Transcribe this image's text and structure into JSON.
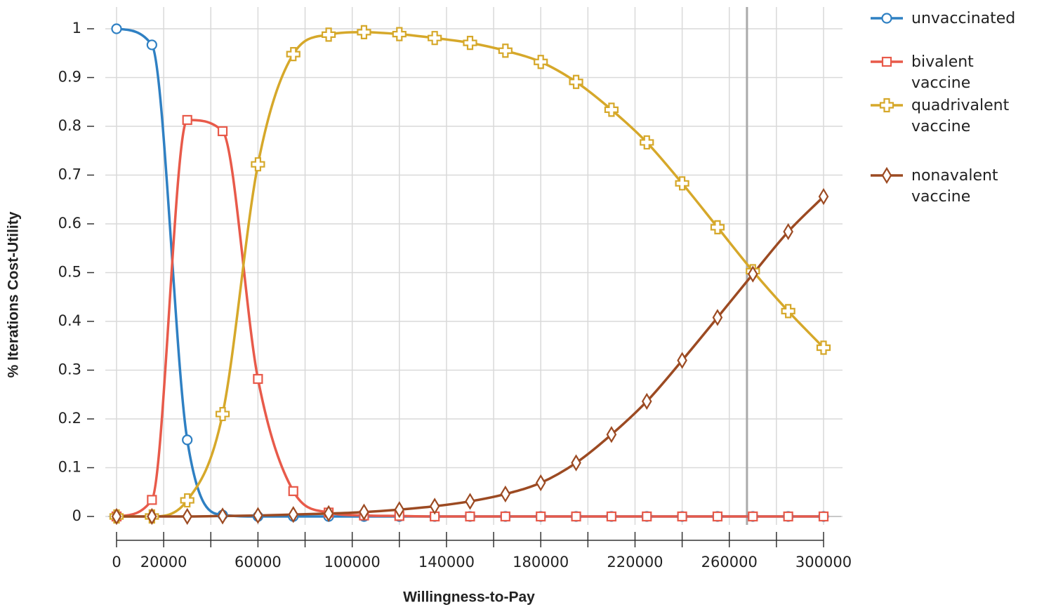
{
  "chart_data": {
    "type": "line",
    "x_label": "Willingness-to-Pay",
    "y_label": "% Iterations Cost-Utility",
    "x": [
      0,
      15000,
      30000,
      45000,
      60000,
      75000,
      90000,
      105000,
      120000,
      135000,
      150000,
      165000,
      180000,
      195000,
      210000,
      225000,
      240000,
      255000,
      270000,
      285000,
      300000
    ],
    "series": [
      {
        "name": "unvaccinated",
        "color": "#2f80c3",
        "marker": "circle",
        "values": [
          1,
          0.967,
          0.157,
          0.003,
          0,
          0,
          0,
          0,
          0,
          0,
          0,
          0,
          0,
          0,
          0,
          0,
          0,
          0,
          0,
          0,
          0
        ]
      },
      {
        "name": "bivalent vaccine",
        "color": "#e85a4a",
        "marker": "square",
        "values": [
          0,
          0.034,
          0.813,
          0.79,
          0.282,
          0.052,
          0.008,
          0.002,
          0.001,
          0,
          0,
          0,
          0,
          0,
          0,
          0,
          0,
          0,
          0,
          0,
          0
        ]
      },
      {
        "name": "quadrivalent vaccine",
        "color": "#d6a82a",
        "marker": "plus",
        "values": [
          0,
          0,
          0.033,
          0.21,
          0.722,
          0.948,
          0.988,
          0.993,
          0.989,
          0.981,
          0.971,
          0.955,
          0.932,
          0.891,
          0.834,
          0.767,
          0.683,
          0.593,
          0.503,
          0.421,
          0.346
        ]
      },
      {
        "name": "nonavalent vaccine",
        "color": "#9c4a22",
        "marker": "diamond",
        "values": [
          0,
          0,
          0,
          0.001,
          0.002,
          0.004,
          0.006,
          0.009,
          0.014,
          0.021,
          0.031,
          0.046,
          0.069,
          0.11,
          0.168,
          0.236,
          0.32,
          0.408,
          0.497,
          0.584,
          0.656
        ]
      }
    ],
    "xlim": [
      0,
      300000
    ],
    "xticks": [
      0,
      20000,
      60000,
      100000,
      140000,
      180000,
      220000,
      260000,
      300000
    ],
    "x_minor_ticks": [
      40000,
      80000,
      120000,
      160000,
      200000,
      240000,
      280000
    ],
    "ylim": [
      0,
      1
    ],
    "yticks": [
      0,
      0.1,
      0.2,
      0.3,
      0.4,
      0.5,
      0.6,
      0.7,
      0.8,
      0.9,
      1
    ],
    "reference_x": 267500,
    "grid": true,
    "legend": "right"
  }
}
